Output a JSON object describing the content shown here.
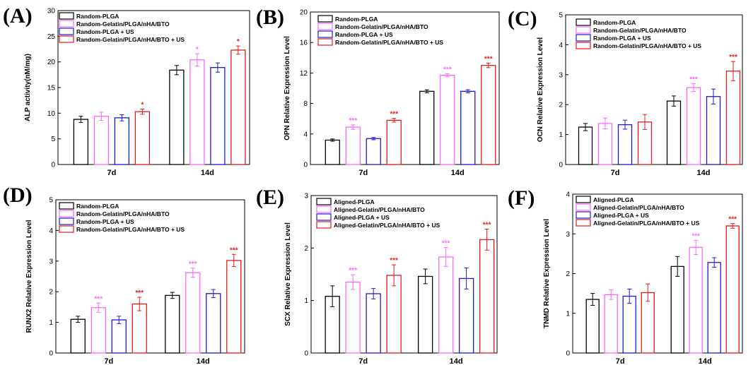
{
  "colors": [
    "#000000",
    "#ff66ff",
    "#1a1ad6",
    "#e01b1b"
  ],
  "chart_data": [
    {
      "type": "bar",
      "panel": "(A)",
      "ylabel": "ALP activity(nM/mg)",
      "ylim": [
        0,
        30
      ],
      "yticks": [
        0,
        5,
        10,
        15,
        20,
        25,
        30
      ],
      "categories": [
        "7d",
        "14d"
      ],
      "series": [
        {
          "name": "Random-PLGA",
          "values": [
            8.8,
            18.4
          ],
          "errors": [
            0.6,
            0.9
          ],
          "sig": [
            "",
            ""
          ]
        },
        {
          "name": "Random-Gelatin/PLGA/nHA/BTO",
          "values": [
            9.4,
            20.4
          ],
          "errors": [
            0.8,
            1.2
          ],
          "sig": [
            "",
            "*"
          ]
        },
        {
          "name": "Random-PLGA + US",
          "values": [
            9.1,
            18.9
          ],
          "errors": [
            0.6,
            0.9
          ],
          "sig": [
            "",
            ""
          ]
        },
        {
          "name": "Random-Gelatin/PLGA/nHA/BTO + US",
          "values": [
            10.3,
            22.3
          ],
          "errors": [
            0.5,
            0.8
          ],
          "sig": [
            "*",
            "*"
          ]
        }
      ]
    },
    {
      "type": "bar",
      "panel": "(B)",
      "ylabel": "OPN Relative Expression Level",
      "ylim": [
        0,
        20
      ],
      "yticks": [
        0,
        4,
        8,
        12,
        16,
        20
      ],
      "categories": [
        "7d",
        "14d"
      ],
      "series": [
        {
          "name": "Random-PLGA",
          "values": [
            3.2,
            9.6
          ],
          "errors": [
            0.15,
            0.2
          ],
          "sig": [
            "",
            ""
          ]
        },
        {
          "name": "Random-Gelatin/PLGA/nHA/BTO",
          "values": [
            4.9,
            11.7
          ],
          "errors": [
            0.3,
            0.2
          ],
          "sig": [
            "***",
            "***"
          ]
        },
        {
          "name": "Random-PLGA + US",
          "values": [
            3.4,
            9.6
          ],
          "errors": [
            0.15,
            0.2
          ],
          "sig": [
            "",
            ""
          ]
        },
        {
          "name": "Random-Gelatin/PLGA/nHA/BTO + US",
          "values": [
            5.8,
            13.0
          ],
          "errors": [
            0.25,
            0.3
          ],
          "sig": [
            "***",
            "***"
          ]
        }
      ]
    },
    {
      "type": "bar",
      "panel": "(C)",
      "ylabel": "OCN Relative Expression Level",
      "ylim": [
        0,
        5
      ],
      "yticks": [
        0,
        1,
        2,
        3,
        4,
        5
      ],
      "categories": [
        "7d",
        "14d"
      ],
      "series": [
        {
          "name": "Random-PLGA",
          "values": [
            1.25,
            2.12
          ],
          "errors": [
            0.12,
            0.17
          ],
          "sig": [
            "",
            ""
          ]
        },
        {
          "name": "Random-Gelatin/PLGA/nHA/BTO",
          "values": [
            1.37,
            2.57
          ],
          "errors": [
            0.18,
            0.13
          ],
          "sig": [
            "",
            "***"
          ]
        },
        {
          "name": "Random-PLGA + US",
          "values": [
            1.33,
            2.27
          ],
          "errors": [
            0.15,
            0.25
          ],
          "sig": [
            "",
            ""
          ]
        },
        {
          "name": "Random-Gelatin/PLGA/nHA/BTO + US",
          "values": [
            1.42,
            3.12
          ],
          "errors": [
            0.25,
            0.32
          ],
          "sig": [
            "",
            "***"
          ]
        }
      ]
    },
    {
      "type": "bar",
      "panel": "(D)",
      "ylabel": "RUNX2 Relative Expression Level",
      "ylim": [
        0,
        5
      ],
      "yticks": [
        0,
        1,
        2,
        3,
        4,
        5
      ],
      "categories": [
        "7d",
        "14d"
      ],
      "series": [
        {
          "name": "Random-PLGA",
          "values": [
            1.1,
            1.88
          ],
          "errors": [
            0.1,
            0.1
          ],
          "sig": [
            "",
            ""
          ]
        },
        {
          "name": "Random-Gelatin/PLGA/nHA/BTO",
          "values": [
            1.48,
            2.62
          ],
          "errors": [
            0.15,
            0.15
          ],
          "sig": [
            "***",
            "***"
          ]
        },
        {
          "name": "Random-PLGA + US",
          "values": [
            1.08,
            1.94
          ],
          "errors": [
            0.12,
            0.13
          ],
          "sig": [
            "",
            ""
          ]
        },
        {
          "name": "Random-Gelatin/PLGA/nHA/BTO + US",
          "values": [
            1.6,
            3.02
          ],
          "errors": [
            0.22,
            0.2
          ],
          "sig": [
            "***",
            "***"
          ]
        }
      ]
    },
    {
      "type": "bar",
      "panel": "(E)",
      "ylabel": "SCX Relative Expression Level",
      "ylim": [
        0,
        3
      ],
      "yticks": [
        0,
        1,
        2,
        3
      ],
      "categories": [
        "7d",
        "14d"
      ],
      "series": [
        {
          "name": "Aligned-PLGA",
          "values": [
            1.08,
            1.46
          ],
          "errors": [
            0.2,
            0.14
          ],
          "sig": [
            "",
            ""
          ]
        },
        {
          "name": "Aligned-Gelatin/PLGA/nHA/BTO",
          "values": [
            1.35,
            1.83
          ],
          "errors": [
            0.14,
            0.18
          ],
          "sig": [
            "***",
            "***"
          ]
        },
        {
          "name": "Aligned-PLGA + US",
          "values": [
            1.13,
            1.42
          ],
          "errors": [
            0.1,
            0.2
          ],
          "sig": [
            "",
            ""
          ]
        },
        {
          "name": "Aligned-Gelatin/PLGA/nHA/BTO + US",
          "values": [
            1.48,
            2.16
          ],
          "errors": [
            0.2,
            0.2
          ],
          "sig": [
            "***",
            "***"
          ]
        }
      ]
    },
    {
      "type": "bar",
      "panel": "(F)",
      "ylabel": "TNMD Relative Expression Level",
      "ylim": [
        0,
        4
      ],
      "yticks": [
        0,
        1,
        2,
        3,
        4
      ],
      "categories": [
        "7d",
        "14d"
      ],
      "series": [
        {
          "name": "Aligned-PLGA",
          "values": [
            1.35,
            2.18
          ],
          "errors": [
            0.15,
            0.25
          ],
          "sig": [
            "",
            ""
          ]
        },
        {
          "name": "Aligned-Gelatin/PLGA/nHA/BTO",
          "values": [
            1.47,
            2.66
          ],
          "errors": [
            0.12,
            0.18
          ],
          "sig": [
            "",
            "***"
          ]
        },
        {
          "name": "Aligned-PLGA + US",
          "values": [
            1.43,
            2.28
          ],
          "errors": [
            0.18,
            0.12
          ],
          "sig": [
            "",
            ""
          ]
        },
        {
          "name": "Aligned-Gelatin/PLGA/nHA/BTO + US",
          "values": [
            1.52,
            3.2
          ],
          "errors": [
            0.22,
            0.06
          ],
          "sig": [
            "",
            "***"
          ]
        }
      ]
    }
  ]
}
